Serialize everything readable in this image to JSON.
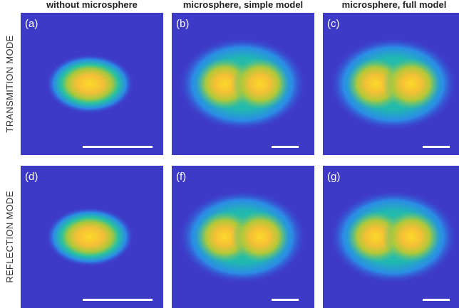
{
  "column_titles": [
    "without microsphere",
    "microsphere, simple model",
    "microsphere, full model"
  ],
  "row_labels": [
    "TRANSMITION MODE",
    "REFLECTION MODE"
  ],
  "panel_labels": [
    [
      "(a)",
      "(b)",
      "(c)"
    ],
    [
      "(d)",
      "(f)",
      "(g)"
    ]
  ]
}
